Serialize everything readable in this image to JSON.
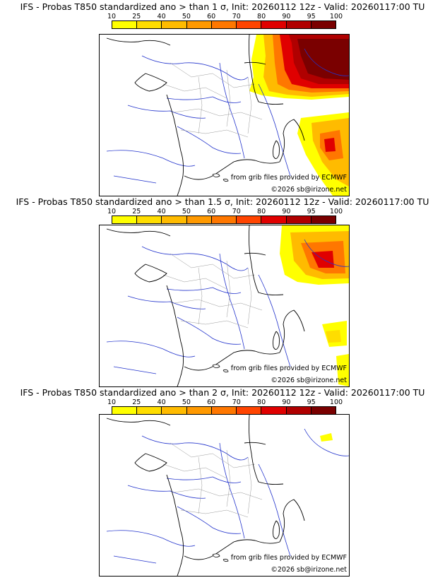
{
  "colors": {
    "scale": [
      "#ffff00",
      "#ffdd00",
      "#ffbb00",
      "#ff9900",
      "#ff7700",
      "#ff4400",
      "#e00000",
      "#b00000",
      "#7a0000"
    ],
    "coast": "#000000",
    "rivers": "#2233cc",
    "borders": "#999999"
  },
  "legend": {
    "labels": [
      "10",
      "25",
      "40",
      "50",
      "60",
      "70",
      "80",
      "90",
      "95",
      "100"
    ]
  },
  "credits": {
    "source": "from grib files provided by ECMWF",
    "copyright": "©2026 sb@irizone.net"
  },
  "panels": [
    {
      "title": "IFS - Probas T850  standardized ano > than 1 σ, Init: 20260112 12z - Valid: 20260117:00 TU"
    },
    {
      "title": "IFS - Probas T850  standardized ano > than 1.5 σ, Init: 20260112 12z - Valid: 20260117:00 TU"
    },
    {
      "title": "IFS - Probas T850  standardized ano > than 2 σ, Init: 20260112 12z - Valid: 20260117:00 TU"
    }
  ]
}
